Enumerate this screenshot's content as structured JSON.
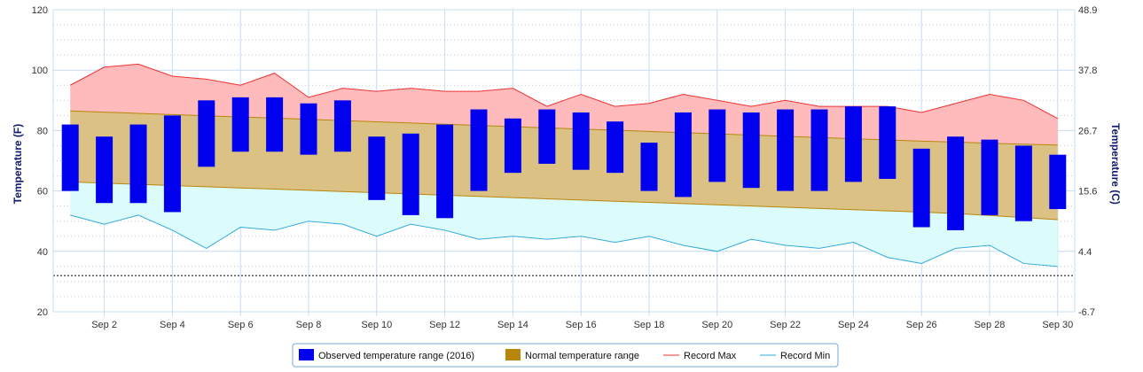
{
  "chart_data": {
    "type": "bar",
    "title": "",
    "xlabel": "",
    "ylabel": "Temperature (F)",
    "y2label": "Temperature (C)",
    "ylim": [
      20,
      120
    ],
    "y_ticks": [
      20,
      40,
      60,
      80,
      100,
      120
    ],
    "y2_ticks": [
      "-6.7",
      "4.4",
      "15.6",
      "26.7",
      "37.8",
      "48.9"
    ],
    "x_tick_labels": [
      "Sep 2",
      "Sep 4",
      "Sep 6",
      "Sep 8",
      "Sep 10",
      "Sep 12",
      "Sep 14",
      "Sep 16",
      "Sep 18",
      "Sep 20",
      "Sep 22",
      "Sep 24",
      "Sep 26",
      "Sep 28",
      "Sep 30"
    ],
    "days": [
      1,
      2,
      3,
      4,
      5,
      6,
      7,
      8,
      9,
      10,
      11,
      12,
      13,
      14,
      15,
      16,
      17,
      18,
      19,
      20,
      21,
      22,
      23,
      24,
      25,
      26,
      27,
      28,
      29,
      30
    ],
    "freezing_line": 32,
    "grid": true,
    "legend_position": "bottom-center",
    "series": [
      {
        "name": "Observed temperature range (2016)",
        "color": "#0000ee",
        "low": [
          60,
          56,
          56,
          53,
          68,
          73,
          73,
          72,
          73,
          57,
          52,
          51,
          60,
          66,
          69,
          67,
          66,
          60,
          58,
          63,
          61,
          60,
          60,
          63,
          64,
          48,
          47,
          52,
          50,
          54
        ],
        "high": [
          82,
          78,
          82,
          85,
          90,
          91,
          91,
          89,
          90,
          78,
          79,
          82,
          87,
          84,
          87,
          86,
          83,
          76,
          86,
          87,
          86,
          87,
          87,
          88,
          88,
          74,
          78,
          77,
          75,
          72
        ]
      },
      {
        "name": "Normal temperature range",
        "color": "#b8860b",
        "low": [
          63,
          62.6,
          62.2,
          61.8,
          61.4,
          61,
          60.6,
          60.2,
          59.8,
          59.4,
          59,
          58.6,
          58.2,
          57.8,
          57.4,
          57,
          56.6,
          56.2,
          55.8,
          55.4,
          55,
          54.6,
          54.2,
          53.8,
          53.4,
          53,
          52.5,
          51.9,
          51.2,
          50.5
        ],
        "high": [
          86.5,
          86.1,
          85.7,
          85.3,
          84.9,
          84.5,
          84.1,
          83.7,
          83.3,
          82.9,
          82.5,
          82.1,
          81.7,
          81.3,
          80.9,
          80.5,
          80.1,
          79.7,
          79.3,
          78.9,
          78.5,
          78.1,
          77.7,
          77.3,
          76.9,
          76.5,
          76.2,
          75.8,
          75.5,
          75.2
        ]
      },
      {
        "name": "Record Max",
        "color": "#ee3333",
        "values": [
          95,
          101,
          102,
          98,
          97,
          95,
          99,
          91,
          94,
          93,
          94,
          93,
          93,
          94,
          88,
          92,
          88,
          89,
          92,
          90,
          88,
          90,
          88,
          88,
          88,
          86,
          89,
          92,
          90,
          84
        ]
      },
      {
        "name": "Record Min",
        "color": "#33aadd",
        "values": [
          52,
          49,
          52,
          47,
          41,
          48,
          47,
          50,
          49,
          45,
          49,
          47,
          44,
          45,
          44,
          45,
          43,
          45,
          42,
          40,
          44,
          42,
          41,
          43,
          38,
          36,
          41,
          42,
          36,
          35
        ]
      }
    ]
  }
}
